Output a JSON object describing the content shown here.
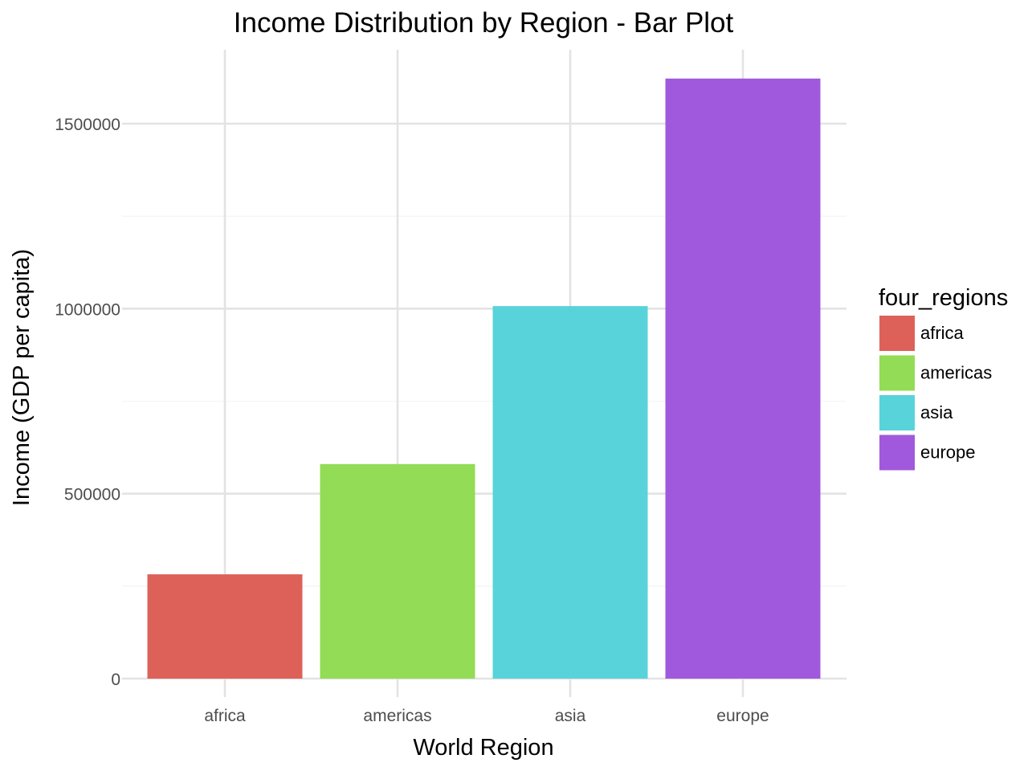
{
  "chart_data": {
    "type": "bar",
    "title": "Income Distribution by Region - Bar Plot",
    "xlabel": "World Region",
    "ylabel": "Income (GDP per capita)",
    "categories": [
      "africa",
      "americas",
      "asia",
      "europe"
    ],
    "values": [
      282000,
      580000,
      1007000,
      1622000
    ],
    "colors": [
      "#dd6158",
      "#93dc56",
      "#58d3da",
      "#a059dd"
    ],
    "ylim": [
      -20000,
      1700000
    ],
    "yticks": [
      0,
      500000,
      1000000,
      1500000
    ],
    "ytick_labels": [
      "0",
      "500000",
      "1000000",
      "1500000"
    ],
    "y_minor_ticks": [
      250000,
      750000,
      1250000
    ],
    "grid": true,
    "legend": {
      "title": "four_regions",
      "position": "right",
      "entries": [
        "africa",
        "americas",
        "asia",
        "europe"
      ]
    }
  }
}
